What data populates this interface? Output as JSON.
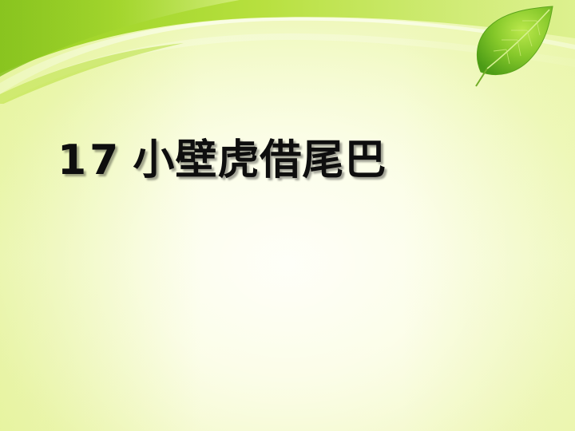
{
  "slide": {
    "title_number": "17",
    "title_text": "小壁虎借尾巴"
  },
  "decor": {
    "swoosh_icon": "green-swoosh-banner",
    "leaf_icon": "green-leaf",
    "colors": {
      "swoosh_dark": "#7cc21c",
      "swoosh_light": "#c8e84a",
      "leaf_dark": "#3f9a10",
      "leaf_light": "#a6dc3a",
      "background": "#f3fac9"
    }
  }
}
